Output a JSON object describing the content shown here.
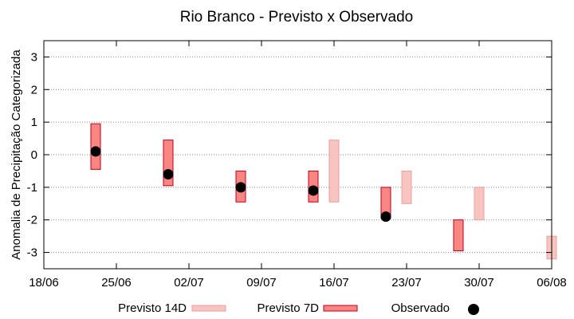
{
  "chart_data": {
    "type": "range-bar",
    "title": "Rio Branco - Previsto x Observado",
    "xlabel": "",
    "ylabel": "Anomalia de Precipitação Categorizada",
    "ylim": [
      -3.5,
      3.5
    ],
    "y_ticks": [
      -3,
      -2,
      -1,
      0,
      1,
      2,
      3
    ],
    "x_ticks": [
      "18/06",
      "25/06",
      "02/07",
      "09/07",
      "16/07",
      "23/07",
      "30/07",
      "06/08"
    ],
    "x_tick_days": [
      0,
      7,
      14,
      21,
      28,
      35,
      42,
      49
    ],
    "x_range_days": [
      0,
      49
    ],
    "grid": "dotted-horizontal",
    "legend_placement": "bottom",
    "series": [
      {
        "name": "Previsto 14D",
        "color_fill": "#f8c4c0",
        "color_edge": "#e8a0a0",
        "points": [
          {
            "day": 28,
            "low": -1.45,
            "high": 0.45
          },
          {
            "day": 35,
            "low": -1.5,
            "high": -0.5
          },
          {
            "day": 42,
            "low": -2.0,
            "high": -1.0
          },
          {
            "day": 49,
            "low": -3.2,
            "high": -2.5
          }
        ]
      },
      {
        "name": "Previsto 7D",
        "color_fill": "#f98683",
        "color_edge": "#c0001a",
        "points": [
          {
            "day": 5,
            "low": -0.45,
            "high": 0.95
          },
          {
            "day": 12,
            "low": -0.95,
            "high": 0.45
          },
          {
            "day": 19,
            "low": -1.45,
            "high": -0.5
          },
          {
            "day": 26,
            "low": -1.45,
            "high": -0.5
          },
          {
            "day": 33,
            "low": -1.95,
            "high": -1.0
          },
          {
            "day": 40,
            "low": -2.95,
            "high": -2.0
          }
        ]
      },
      {
        "name": "Observado",
        "color": "#000000",
        "points": [
          {
            "day": 5,
            "value": 0.1
          },
          {
            "day": 12,
            "value": -0.6
          },
          {
            "day": 19,
            "value": -1.0
          },
          {
            "day": 26,
            "value": -1.1
          },
          {
            "day": 33,
            "value": -1.9
          }
        ]
      }
    ]
  }
}
